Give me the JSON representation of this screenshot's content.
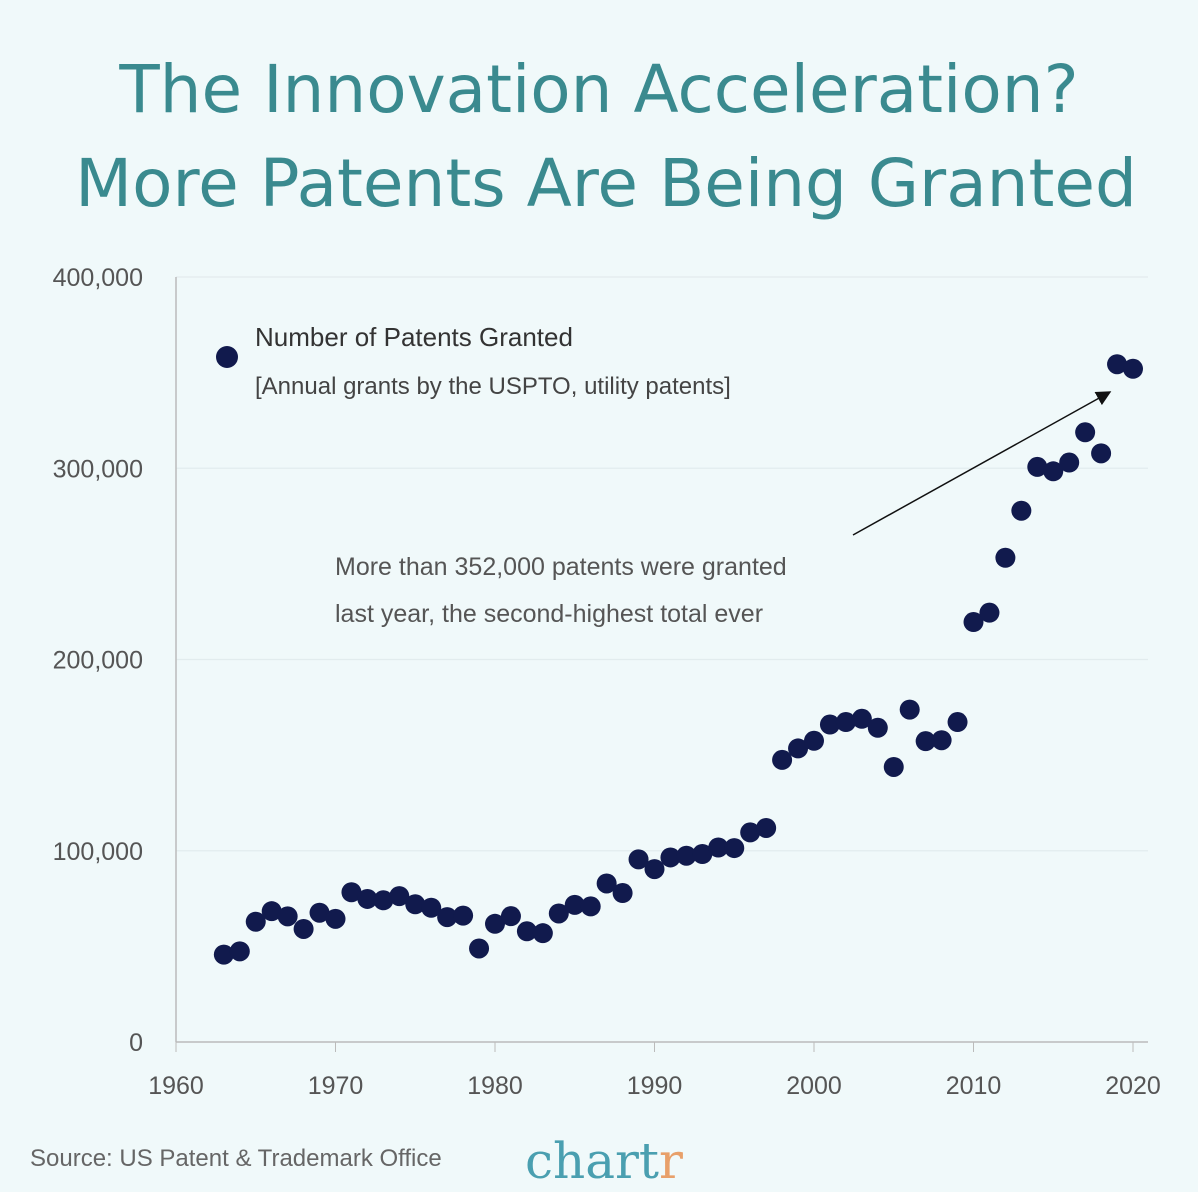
{
  "title_lines": [
    "The Innovation Acceleration?",
    "More Patents Are Being Granted"
  ],
  "source": "Source: US Patent & Trademark Office",
  "logo": {
    "main": "chart",
    "last": "r",
    "main_color": "#4a9fb0",
    "last_color": "#e8a06a"
  },
  "colors": {
    "background": "#f0f9fa",
    "title": "#3a8a8f",
    "dots": "#111a4d"
  },
  "chart_data": {
    "type": "scatter",
    "title": "The Innovation Acceleration? More Patents Are Being Granted",
    "xlim": [
      1960,
      2021
    ],
    "ylim": [
      0,
      400000
    ],
    "xticks": [
      1960,
      1970,
      1980,
      1990,
      2000,
      2010,
      2020
    ],
    "yticks": [
      0,
      100000,
      200000,
      300000,
      400000
    ],
    "ytick_labels": [
      "0",
      "100,000",
      "200,000",
      "300,000",
      "400,000"
    ],
    "xtick_labels": [
      "1960",
      "1970",
      "1980",
      "1990",
      "2000",
      "2010",
      "2020"
    ],
    "grid": "horizontal",
    "legend": {
      "position": "top-left",
      "label": "Number of Patents Granted",
      "sublabel": "[Annual grants by the USPTO, utility patents]"
    },
    "annotation": {
      "lines": [
        "More than 352,000 patents were granted",
        "last year, the second-highest total ever"
      ],
      "points_to": 2019
    },
    "series": [
      {
        "name": "Number of Patents Granted",
        "x": [
          1963,
          1964,
          1965,
          1966,
          1967,
          1968,
          1969,
          1970,
          1971,
          1972,
          1973,
          1974,
          1975,
          1976,
          1977,
          1978,
          1979,
          1980,
          1981,
          1982,
          1983,
          1984,
          1985,
          1986,
          1987,
          1988,
          1989,
          1990,
          1991,
          1992,
          1993,
          1994,
          1995,
          1996,
          1997,
          1998,
          1999,
          2000,
          2001,
          2002,
          2003,
          2004,
          2005,
          2006,
          2007,
          2008,
          2009,
          2010,
          2011,
          2012,
          2013,
          2014,
          2015,
          2016,
          2017,
          2018,
          2019,
          2020
        ],
        "y": [
          45700,
          47400,
          62900,
          68400,
          65700,
          59100,
          67600,
          64400,
          78300,
          74800,
          74100,
          76300,
          72000,
          70200,
          65300,
          66100,
          48900,
          61800,
          65800,
          57900,
          56900,
          67200,
          71700,
          70900,
          82900,
          77900,
          95500,
          90400,
          96500,
          97400,
          98300,
          101700,
          101400,
          109600,
          111900,
          147500,
          153500,
          157500,
          166000,
          167300,
          169000,
          164300,
          143800,
          173800,
          157300,
          157800,
          167300,
          219600,
          224500,
          253200,
          277800,
          300700,
          298400,
          303000,
          318800,
          307800,
          354400,
          352000
        ]
      }
    ]
  }
}
